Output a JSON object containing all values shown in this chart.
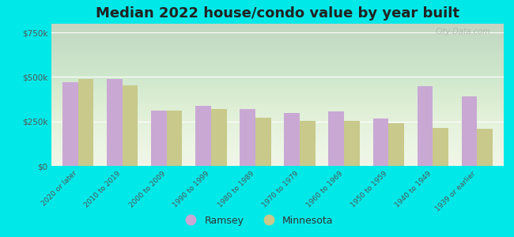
{
  "title": "Median 2022 house/condo value by year built",
  "categories": [
    "2020 or later",
    "2010 to 2019",
    "2000 to 2009",
    "1990 to 1999",
    "1980 to 1989",
    "1970 to 1979",
    "1960 to 1969",
    "1950 to 1959",
    "1940 to 1949",
    "1939 or earlier"
  ],
  "ramsey": [
    470000,
    490000,
    310000,
    340000,
    320000,
    300000,
    305000,
    265000,
    450000,
    390000
  ],
  "minnesota": [
    490000,
    455000,
    310000,
    320000,
    270000,
    255000,
    255000,
    240000,
    215000,
    210000
  ],
  "ramsey_color": "#c9a8d4",
  "minnesota_color": "#c8c98a",
  "background_outer": "#00e8e8",
  "background_inner_color": "#eef5e5",
  "yticks": [
    0,
    250000,
    500000,
    750000
  ],
  "ytick_labels": [
    "$0",
    "$250k",
    "$500k",
    "$750k"
  ],
  "ylim": [
    0,
    800000
  ],
  "bar_width": 0.35,
  "title_fontsize": 13,
  "watermark": "City-Data.com"
}
